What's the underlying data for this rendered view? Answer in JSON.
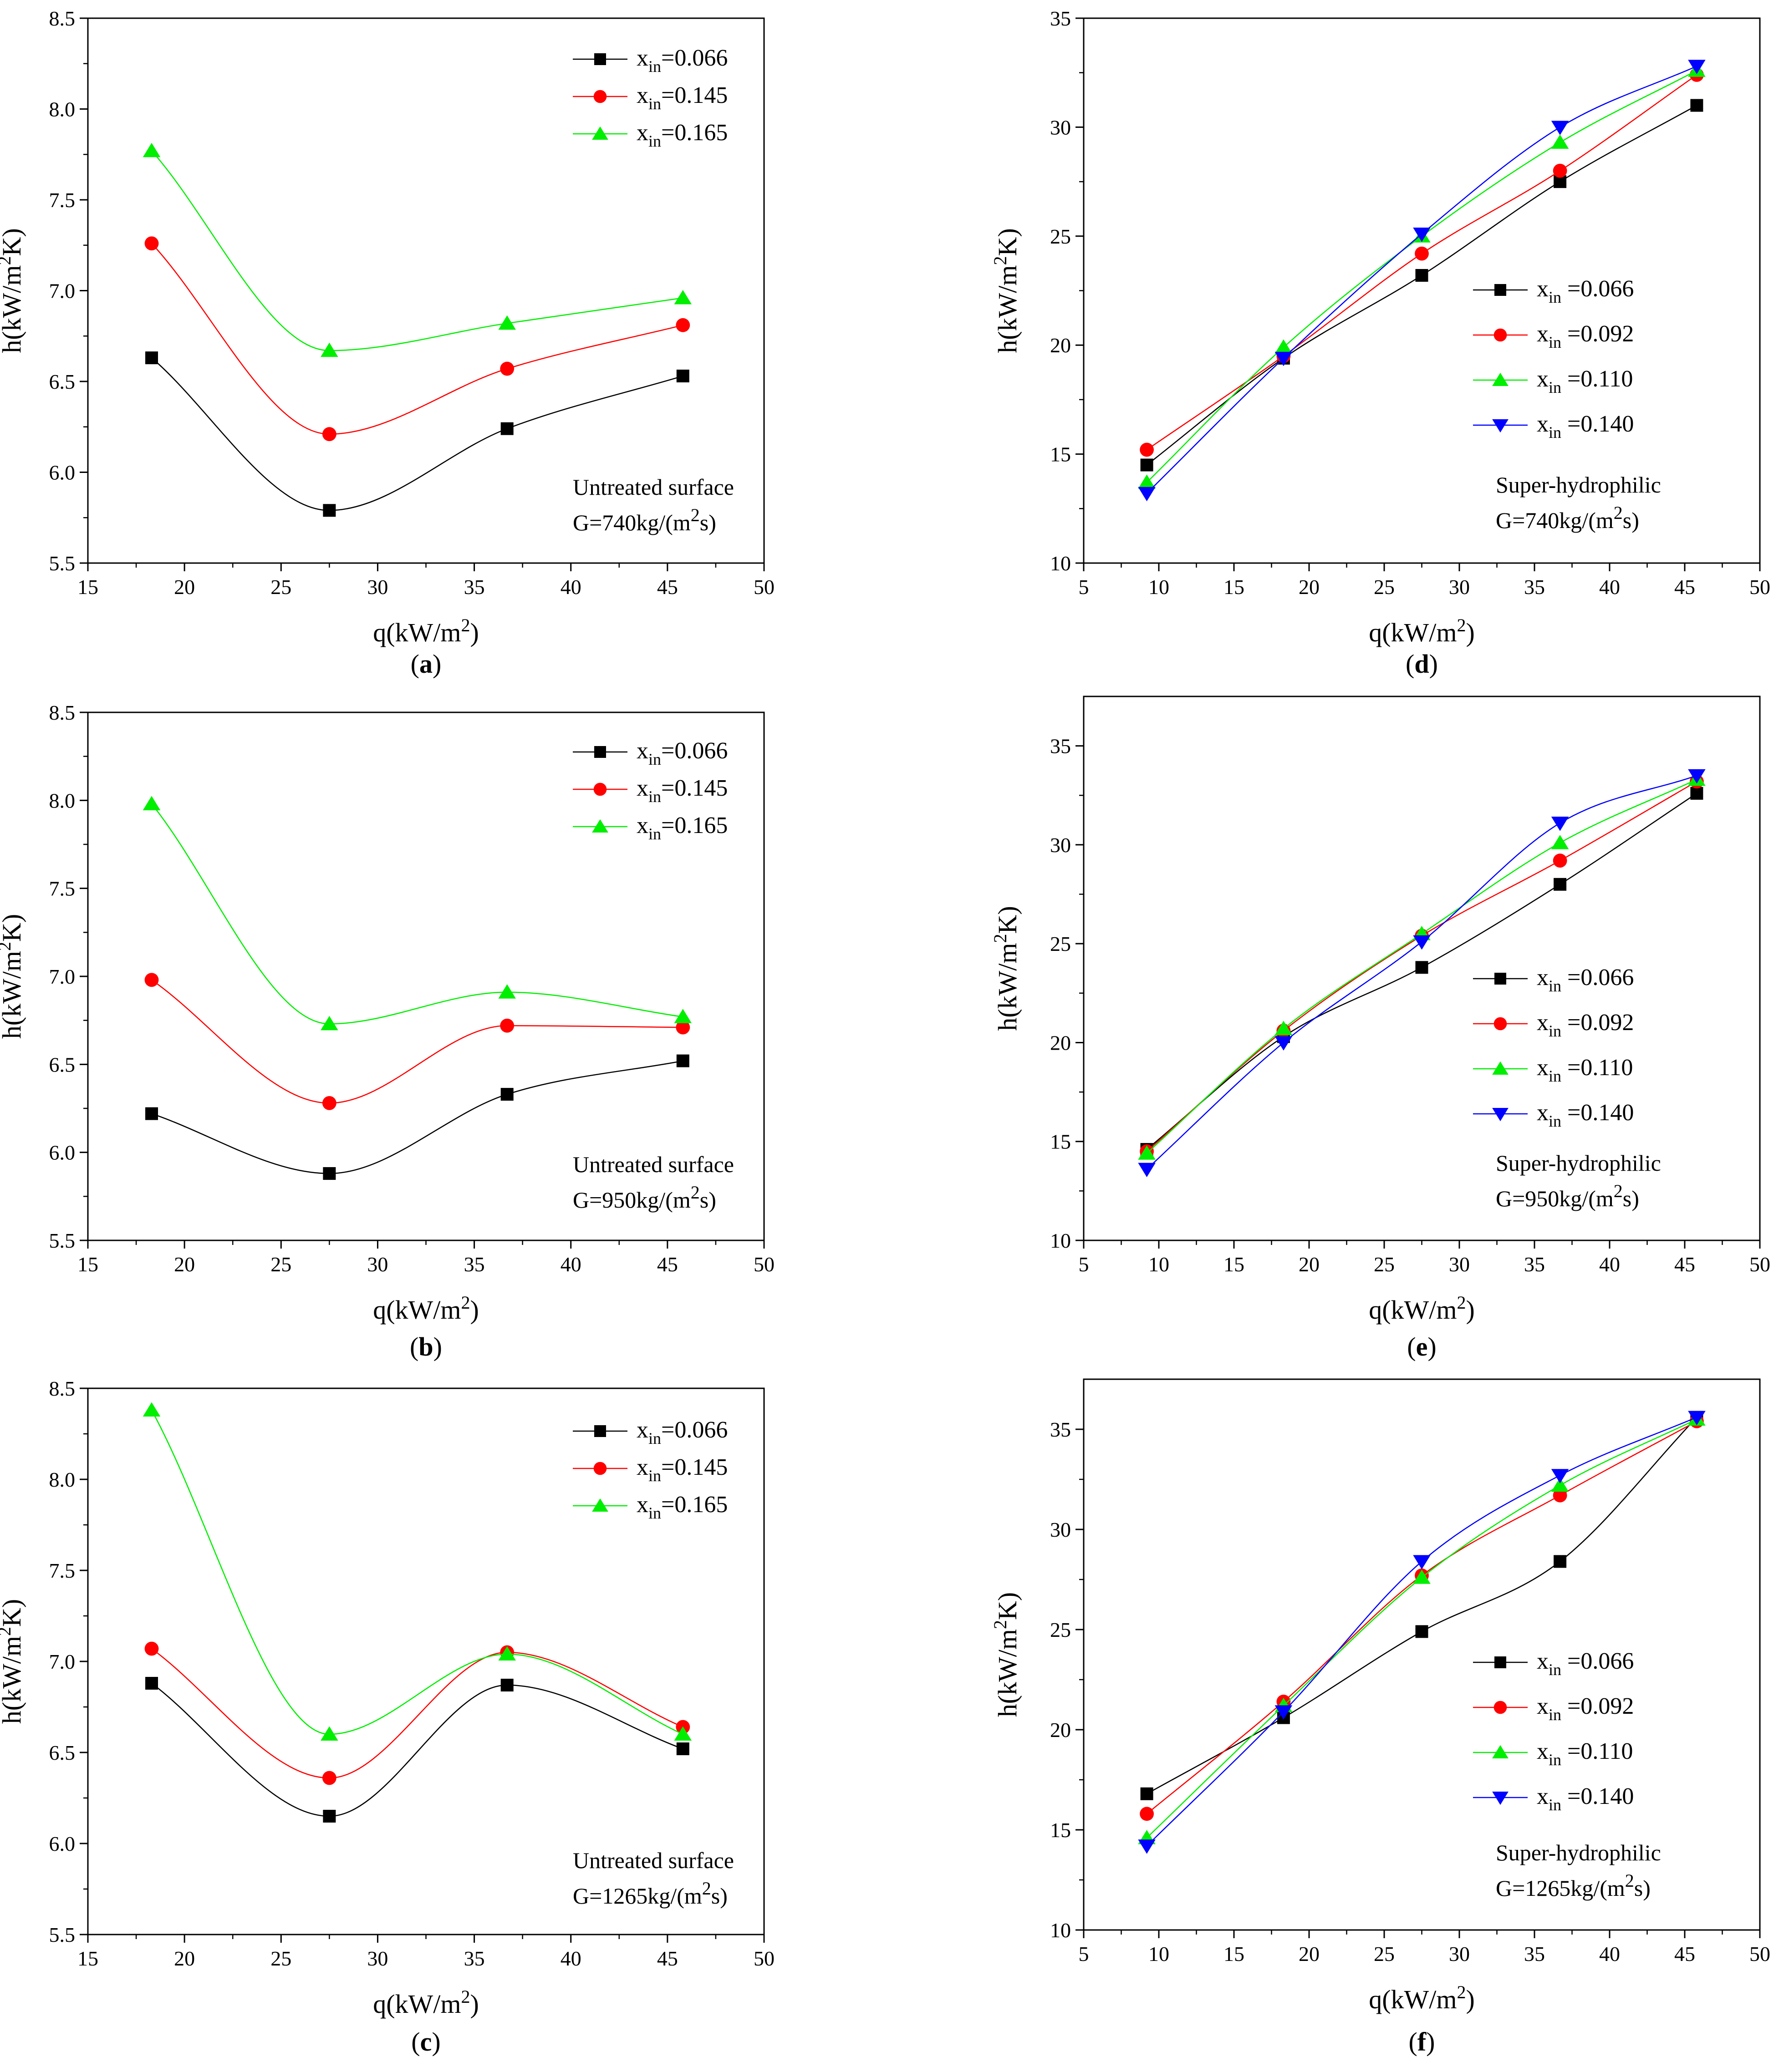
{
  "figure": {
    "background": "#ffffff"
  },
  "colors": {
    "black": "#000000",
    "red": "#ff0000",
    "green": "#00ee00",
    "blue": "#0000ff"
  },
  "chart_data": [
    {
      "id": "a",
      "type": "line",
      "label": "a",
      "xlabel": {
        "pre": "q(kW/m",
        "sup": "2",
        "post": ")"
      },
      "ylabel": {
        "pre": "h(kW/m",
        "sup": "2",
        "post": "K)"
      },
      "xlim": [
        15,
        50
      ],
      "ylim": [
        5.5,
        8.5
      ],
      "xticks": [
        15,
        20,
        25,
        30,
        35,
        40,
        45,
        50
      ],
      "yticks": [
        5.5,
        6.0,
        6.5,
        7.0,
        7.5,
        8.0,
        8.5
      ],
      "tick_decimals": 1,
      "legend_position": "top-right",
      "annotation": {
        "line1": "Untreated surface",
        "line2_pre": "G=740kg/(m",
        "line2_sup": "2",
        "line2_post": "s)"
      },
      "series": [
        {
          "name": "x_in=0.066",
          "x_prefix": "x",
          "x_sub": "in",
          "x_value": "=0.066",
          "marker": "square",
          "color": "#000000",
          "x": [
            18.3,
            27.5,
            36.7,
            45.8
          ],
          "y": [
            6.63,
            5.79,
            6.24,
            6.53
          ]
        },
        {
          "name": "x_in=0.145",
          "x_prefix": "x",
          "x_sub": "in",
          "x_value": "=0.145",
          "marker": "circle",
          "color": "#ff0000",
          "x": [
            18.3,
            27.5,
            36.7,
            45.8
          ],
          "y": [
            7.26,
            6.21,
            6.57,
            6.81
          ]
        },
        {
          "name": "x_in=0.165",
          "x_prefix": "x",
          "x_sub": "in",
          "x_value": "=0.165",
          "marker": "triangle-up",
          "color": "#00ee00",
          "x": [
            18.3,
            27.5,
            36.7,
            45.8
          ],
          "y": [
            7.77,
            6.67,
            6.82,
            6.96
          ]
        }
      ]
    },
    {
      "id": "b",
      "type": "line",
      "label": "b",
      "xlabel": {
        "pre": "q(kW/m",
        "sup": "2",
        "post": ")"
      },
      "ylabel": {
        "pre": "h(kW/m",
        "sup": "2",
        "post": "K)"
      },
      "xlim": [
        15,
        50
      ],
      "ylim": [
        5.5,
        8.5
      ],
      "xticks": [
        15,
        20,
        25,
        30,
        35,
        40,
        45,
        50
      ],
      "yticks": [
        5.5,
        6.0,
        6.5,
        7.0,
        7.5,
        8.0,
        8.5
      ],
      "tick_decimals": 1,
      "legend_position": "top-right",
      "annotation": {
        "line1": "Untreated surface",
        "line2_pre": "G=950kg/(m",
        "line2_sup": "2",
        "line2_post": "s)"
      },
      "series": [
        {
          "name": "x_in=0.066",
          "x_prefix": "x",
          "x_sub": "in",
          "x_value": "=0.066",
          "marker": "square",
          "color": "#000000",
          "x": [
            18.3,
            27.5,
            36.7,
            45.8
          ],
          "y": [
            6.22,
            5.88,
            6.33,
            6.52
          ]
        },
        {
          "name": "x_in=0.145",
          "x_prefix": "x",
          "x_sub": "in",
          "x_value": "=0.145",
          "marker": "circle",
          "color": "#ff0000",
          "x": [
            18.3,
            27.5,
            36.7,
            45.8
          ],
          "y": [
            6.98,
            6.28,
            6.72,
            6.71
          ]
        },
        {
          "name": "x_in=0.165",
          "x_prefix": "x",
          "x_sub": "in",
          "x_value": "=0.165",
          "marker": "triangle-up",
          "color": "#00ee00",
          "x": [
            18.3,
            27.5,
            36.7,
            45.8
          ],
          "y": [
            7.98,
            6.73,
            6.91,
            6.77
          ]
        }
      ]
    },
    {
      "id": "c",
      "type": "line",
      "label": "c",
      "xlabel": {
        "pre": "q(kW/m",
        "sup": "2",
        "post": ")"
      },
      "ylabel": {
        "pre": "h(kW/m",
        "sup": "2",
        "post": "K)"
      },
      "xlim": [
        15,
        50
      ],
      "ylim": [
        5.5,
        8.5
      ],
      "xticks": [
        15,
        20,
        25,
        30,
        35,
        40,
        45,
        50
      ],
      "yticks": [
        5.5,
        6.0,
        6.5,
        7.0,
        7.5,
        8.0,
        8.5
      ],
      "tick_decimals": 1,
      "legend_position": "top-right",
      "annotation": {
        "line1": "Untreated surface",
        "line2_pre": "G=1265kg/(m",
        "line2_sup": "2",
        "line2_post": "s)"
      },
      "series": [
        {
          "name": "x_in=0.066",
          "x_prefix": "x",
          "x_sub": "in",
          "x_value": "=0.066",
          "marker": "square",
          "color": "#000000",
          "x": [
            18.3,
            27.5,
            36.7,
            45.8
          ],
          "y": [
            6.88,
            6.15,
            6.87,
            6.52
          ]
        },
        {
          "name": "x_in=0.145",
          "x_prefix": "x",
          "x_sub": "in",
          "x_value": "=0.145",
          "marker": "circle",
          "color": "#ff0000",
          "x": [
            18.3,
            27.5,
            36.7,
            45.8
          ],
          "y": [
            7.07,
            6.36,
            7.05,
            6.64
          ]
        },
        {
          "name": "x_in=0.165",
          "x_prefix": "x",
          "x_sub": "in",
          "x_value": "=0.165",
          "marker": "triangle-up",
          "color": "#00ee00",
          "x": [
            18.3,
            27.5,
            36.7,
            45.8
          ],
          "y": [
            8.38,
            6.6,
            7.04,
            6.6
          ]
        }
      ]
    },
    {
      "id": "d",
      "type": "line",
      "label": "d",
      "xlabel": {
        "pre": "q(kW/m",
        "sup": "2",
        "post": ")"
      },
      "ylabel": {
        "pre": "h(kW/m",
        "sup": "2",
        "post": "K)"
      },
      "xlim": [
        5,
        50
      ],
      "ylim": [
        10,
        35
      ],
      "xticks": [
        5,
        10,
        15,
        20,
        25,
        30,
        35,
        40,
        45,
        50
      ],
      "yticks": [
        10,
        15,
        20,
        25,
        30,
        35
      ],
      "tick_decimals": 0,
      "legend_position": "center-right",
      "annotation": {
        "line1": "Super-hydrophilic",
        "line2_pre": "G=740kg/(m",
        "line2_sup": "2",
        "line2_post": "s)"
      },
      "series": [
        {
          "name": "x_in =0.066",
          "x_prefix": "x",
          "x_sub": "in",
          "x_value": " =0.066",
          "marker": "square",
          "color": "#000000",
          "x": [
            9.2,
            18.3,
            27.5,
            36.7,
            45.8
          ],
          "y": [
            14.5,
            19.4,
            23.2,
            27.5,
            31.0
          ]
        },
        {
          "name": "x_in =0.092",
          "x_prefix": "x",
          "x_sub": "in",
          "x_value": " =0.092",
          "marker": "circle",
          "color": "#ff0000",
          "x": [
            9.2,
            18.3,
            27.5,
            36.7,
            45.8
          ],
          "y": [
            15.2,
            19.5,
            24.2,
            28.0,
            32.4
          ]
        },
        {
          "name": "x_in =0.110",
          "x_prefix": "x",
          "x_sub": "in",
          "x_value": " =0.110",
          "marker": "triangle-up",
          "color": "#00ee00",
          "x": [
            9.2,
            18.3,
            27.5,
            36.7,
            45.8
          ],
          "y": [
            13.7,
            19.9,
            25.0,
            29.3,
            32.6
          ]
        },
        {
          "name": "x_in =0.140",
          "x_prefix": "x",
          "x_sub": "in",
          "x_value": " =0.140",
          "marker": "triangle-down",
          "color": "#0000ff",
          "x": [
            9.2,
            18.3,
            27.5,
            36.7,
            45.8
          ],
          "y": [
            13.2,
            19.4,
            25.1,
            30.0,
            32.8
          ]
        }
      ]
    },
    {
      "id": "e",
      "type": "line",
      "label": "e",
      "xlabel": {
        "pre": "q(kW/m",
        "sup": "2",
        "post": ")"
      },
      "ylabel": {
        "pre": "h(kW/m",
        "sup": "2",
        "post": "K)"
      },
      "xlim": [
        5,
        50
      ],
      "ylim": [
        10,
        37.5
      ],
      "xticks": [
        5,
        10,
        15,
        20,
        25,
        30,
        35,
        40,
        45,
        50
      ],
      "yticks": [
        10,
        15,
        20,
        25,
        30,
        35
      ],
      "tick_decimals": 0,
      "legend_position": "center-right",
      "annotation": {
        "line1": "Super-hydrophilic",
        "line2_pre": "G=950kg/(m",
        "line2_sup": "2",
        "line2_post": "s)"
      },
      "series": [
        {
          "name": "x_in =0.066",
          "x_prefix": "x",
          "x_sub": "in",
          "x_value": " =0.066",
          "marker": "square",
          "color": "#000000",
          "x": [
            9.2,
            18.3,
            27.5,
            36.7,
            45.8
          ],
          "y": [
            14.6,
            20.3,
            23.8,
            28.0,
            32.6
          ]
        },
        {
          "name": "x_in =0.092",
          "x_prefix": "x",
          "x_sub": "in",
          "x_value": " =0.092",
          "marker": "circle",
          "color": "#ff0000",
          "x": [
            9.2,
            18.3,
            27.5,
            36.7,
            45.8
          ],
          "y": [
            14.5,
            20.6,
            25.4,
            29.2,
            33.2
          ]
        },
        {
          "name": "x_in =0.110",
          "x_prefix": "x",
          "x_sub": "in",
          "x_value": " =0.110",
          "marker": "triangle-up",
          "color": "#00ee00",
          "x": [
            9.2,
            18.3,
            27.5,
            36.7,
            45.8
          ],
          "y": [
            14.4,
            20.7,
            25.5,
            30.1,
            33.3
          ]
        },
        {
          "name": "x_in =0.140",
          "x_prefix": "x",
          "x_sub": "in",
          "x_value": " =0.140",
          "marker": "triangle-down",
          "color": "#0000ff",
          "x": [
            9.2,
            18.3,
            27.5,
            36.7,
            45.8
          ],
          "y": [
            13.6,
            20.0,
            25.1,
            31.1,
            33.5
          ]
        }
      ]
    },
    {
      "id": "f",
      "type": "line",
      "label": "f",
      "xlabel": {
        "pre": "q(kW/m",
        "sup": "2",
        "post": ")"
      },
      "ylabel": {
        "pre": "h(kW/m",
        "sup": "2",
        "post": "K)"
      },
      "xlim": [
        5,
        50
      ],
      "ylim": [
        10,
        37.5
      ],
      "xticks": [
        5,
        10,
        15,
        20,
        25,
        30,
        35,
        40,
        45,
        50
      ],
      "yticks": [
        10,
        15,
        20,
        25,
        30,
        35
      ],
      "tick_decimals": 0,
      "legend_position": "center-right",
      "annotation": {
        "line1": "Super-hydrophilic",
        "line2_pre": "G=1265kg/(m",
        "line2_sup": "2",
        "line2_post": "s)"
      },
      "series": [
        {
          "name": "x_in =0.066",
          "x_prefix": "x",
          "x_sub": "in",
          "x_value": " =0.066",
          "marker": "square",
          "color": "#000000",
          "x": [
            9.2,
            18.3,
            27.5,
            36.7,
            45.8
          ],
          "y": [
            16.8,
            20.6,
            24.9,
            28.4,
            35.6
          ]
        },
        {
          "name": "x_in =0.092",
          "x_prefix": "x",
          "x_sub": "in",
          "x_value": " =0.092",
          "marker": "circle",
          "color": "#ff0000",
          "x": [
            9.2,
            18.3,
            27.5,
            36.7,
            45.8
          ],
          "y": [
            15.8,
            21.4,
            27.7,
            31.7,
            35.4
          ]
        },
        {
          "name": "x_in =0.110",
          "x_prefix": "x",
          "x_sub": "in",
          "x_value": " =0.110",
          "marker": "triangle-up",
          "color": "#00ee00",
          "x": [
            9.2,
            18.3,
            27.5,
            36.7,
            45.8
          ],
          "y": [
            14.6,
            21.2,
            27.6,
            32.2,
            35.5
          ]
        },
        {
          "name": "x_in =0.140",
          "x_prefix": "x",
          "x_sub": "in",
          "x_value": " =0.140",
          "marker": "triangle-down",
          "color": "#0000ff",
          "x": [
            9.2,
            18.3,
            27.5,
            36.7,
            45.8
          ],
          "y": [
            14.2,
            20.9,
            28.4,
            32.7,
            35.6
          ]
        }
      ]
    }
  ]
}
